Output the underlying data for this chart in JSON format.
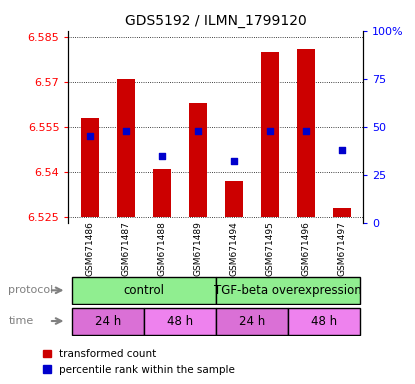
{
  "title": "GDS5192 / ILMN_1799120",
  "samples": [
    "GSM671486",
    "GSM671487",
    "GSM671488",
    "GSM671489",
    "GSM671494",
    "GSM671495",
    "GSM671496",
    "GSM671497"
  ],
  "bar_bottoms": [
    6.525,
    6.525,
    6.525,
    6.525,
    6.525,
    6.525,
    6.525,
    6.525
  ],
  "bar_tops": [
    6.558,
    6.571,
    6.541,
    6.563,
    6.537,
    6.58,
    6.581,
    6.528
  ],
  "blue_dots_pct": [
    45,
    48,
    35,
    48,
    32,
    48,
    48,
    38
  ],
  "ylim_left": [
    6.523,
    6.587
  ],
  "ylim_right": [
    0,
    100
  ],
  "yticks_left": [
    6.525,
    6.54,
    6.555,
    6.57,
    6.585
  ],
  "yticks_right": [
    0,
    25,
    50,
    75,
    100
  ],
  "bar_color": "#cc0000",
  "dot_color": "#0000cc",
  "protocol_labels": [
    "control",
    "TGF-beta overexpression"
  ],
  "protocol_color_control": "#90ee90",
  "protocol_color_tgf": "#90ee90",
  "time_labels": [
    "24 h",
    "48 h",
    "24 h",
    "48 h"
  ],
  "time_color_24": "#da70d6",
  "time_color_48": "#ee82ee",
  "legend_red": "transformed count",
  "legend_blue": "percentile rank within the sample"
}
